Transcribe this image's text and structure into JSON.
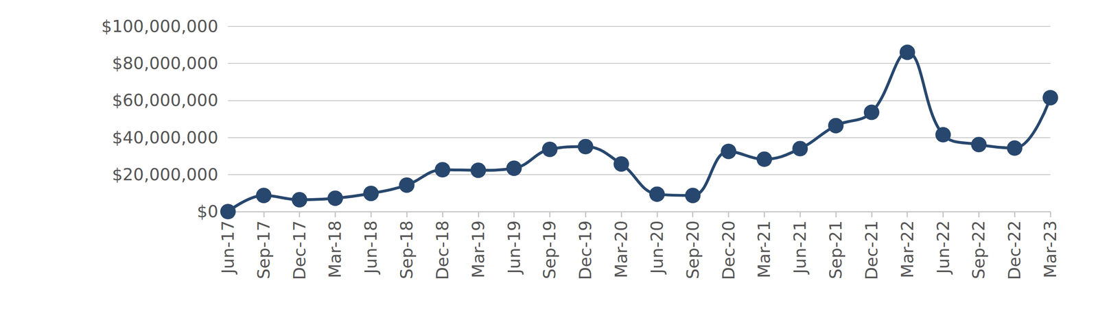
{
  "chart_data": {
    "type": "line",
    "categories": [
      "Jun-17",
      "Sep-17",
      "Dec-17",
      "Mar-18",
      "Jun-18",
      "Sep-18",
      "Dec-18",
      "Mar-19",
      "Jun-19",
      "Sep-19",
      "Dec-19",
      "Mar-20",
      "Jun-20",
      "Sep-20",
      "Dec-20",
      "Mar-21",
      "Jun-21",
      "Sep-21",
      "Dec-21",
      "Mar-22",
      "Jun-22",
      "Sep-22",
      "Dec-22",
      "Mar-23"
    ],
    "values": [
      0,
      8700000,
      6400000,
      7200000,
      9800000,
      14300000,
      22600000,
      22300000,
      23400000,
      33600000,
      35100000,
      25700000,
      9400000,
      8700000,
      32500000,
      28300000,
      34000000,
      46400000,
      53600000,
      86000000,
      41500000,
      36200000,
      34300000,
      61500000
    ],
    "color": "#27476e",
    "marker": "circle",
    "ylim": [
      0,
      100000000
    ],
    "yticks": [
      {
        "value": 0,
        "label": "$0"
      },
      {
        "value": 20000000,
        "label": "$20,000,000"
      },
      {
        "value": 40000000,
        "label": "$40,000,000"
      },
      {
        "value": 60000000,
        "label": "$60,000,000"
      },
      {
        "value": 80000000,
        "label": "$80,000,000"
      },
      {
        "value": 100000000,
        "label": "$100,000,000"
      }
    ],
    "grid": true
  }
}
